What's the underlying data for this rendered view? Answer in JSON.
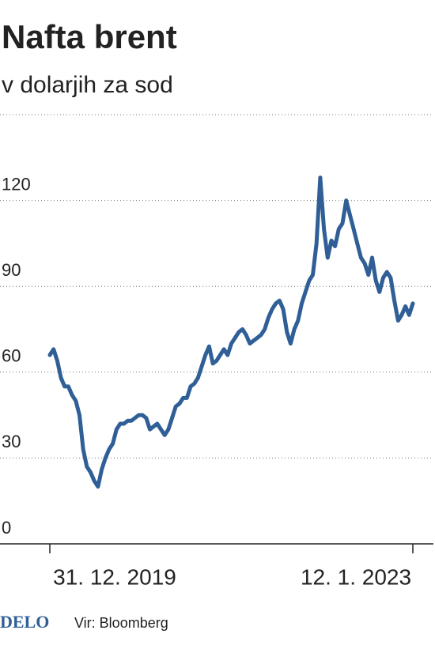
{
  "chart_data": {
    "type": "line",
    "title": "Nafta brent",
    "subtitle": "v dolarjih za sod",
    "categories": [
      "31. 12. 2019",
      null,
      null,
      null,
      null,
      null,
      null,
      null,
      null,
      null,
      null,
      null,
      null,
      null,
      null,
      null,
      null,
      null,
      null,
      null,
      null,
      null,
      null,
      null,
      null,
      null,
      null,
      null,
      null,
      null,
      null,
      null,
      null,
      null,
      null,
      null,
      null,
      null,
      null,
      null,
      null,
      null,
      null,
      null,
      null,
      null,
      null,
      null,
      null,
      null,
      null,
      null,
      null,
      null,
      null,
      null,
      null,
      null,
      null,
      null,
      null,
      null,
      null,
      null,
      null,
      null,
      null,
      null,
      null,
      null,
      null,
      null,
      null,
      null,
      null,
      null,
      null,
      null,
      null,
      null,
      null,
      null,
      null,
      null,
      null,
      null,
      null,
      null,
      null,
      null,
      null,
      null,
      null,
      null,
      null,
      null,
      null,
      null,
      "12. 1. 2023"
    ],
    "values": [
      66,
      68,
      64,
      58,
      55,
      55,
      52,
      50,
      45,
      33,
      27,
      25,
      22,
      20,
      26,
      30,
      33,
      35,
      40,
      42,
      42,
      43,
      43,
      44,
      45,
      45,
      44,
      40,
      41,
      42,
      40,
      38,
      40,
      44,
      48,
      49,
      51,
      51,
      55,
      56,
      58,
      62,
      66,
      69,
      63,
      64,
      66,
      68,
      66,
      70,
      72,
      74,
      75,
      73,
      70,
      71,
      72,
      73,
      75,
      79,
      82,
      84,
      85,
      82,
      74,
      70,
      75,
      78,
      84,
      88,
      92,
      94,
      105,
      128,
      110,
      100,
      106,
      104,
      110,
      112,
      120,
      115,
      110,
      105,
      100,
      98,
      94,
      100,
      92,
      88,
      93,
      95,
      93,
      85,
      78,
      80,
      83,
      80,
      84
    ],
    "color": "#2f5f96",
    "ylim": [
      0,
      150
    ],
    "yticks": [
      0,
      30,
      60,
      90,
      120
    ],
    "grid": true
  },
  "footer": {
    "logo": "DELO",
    "source": "Vir: Bloomberg"
  }
}
